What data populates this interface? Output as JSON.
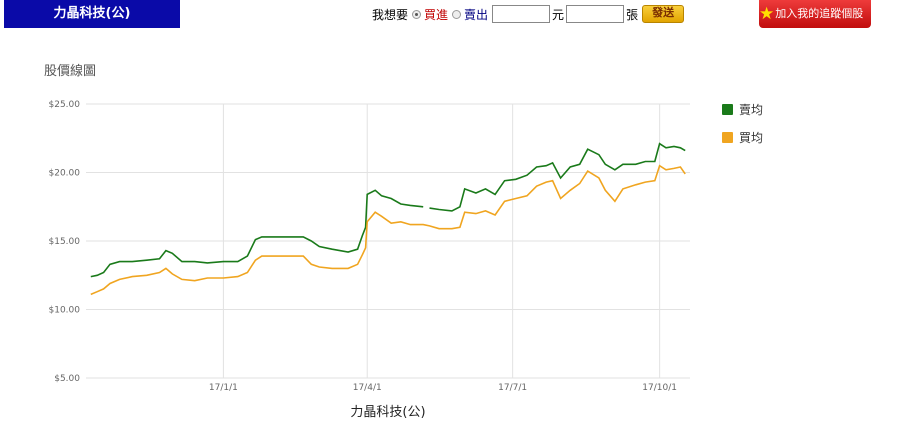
{
  "header": {
    "stock_title": "力晶科技(公)",
    "order_label": "我想要",
    "buy_label": "買進",
    "sell_label": "賣出",
    "price_value": "",
    "price_unit": "元",
    "qty_value": "",
    "qty_unit": "張",
    "send_label": "發送",
    "track_label": "加入我的追蹤個股"
  },
  "colors": {
    "sell_avg": "#1a7a1a",
    "buy_avg": "#f0a520",
    "header_bg": "#0a0aa8"
  },
  "chart_data": {
    "type": "line",
    "title": "股價線圖",
    "xlabel": "力晶科技(公)",
    "ylabel": "",
    "ylim": [
      5,
      25
    ],
    "yticks": [
      "$25.00",
      "$20.00",
      "$15.00",
      "$10.00",
      "$5.00"
    ],
    "ytick_values": [
      25,
      20,
      15,
      10,
      5
    ],
    "xlim": [
      "2016-10-07",
      "2017-10-20"
    ],
    "xticks": [
      "17/1/1",
      "17/4/1",
      "17/7/1",
      "17/10/1"
    ],
    "xtick_dates": [
      "2017-01-01",
      "2017-04-01",
      "2017-07-01",
      "2017-10-01"
    ],
    "grid": true,
    "legend_position": "right",
    "series": [
      {
        "name": "賣均",
        "color": "#1a7a1a",
        "points": [
          [
            "2016-10-10",
            12.4
          ],
          [
            "2016-10-14",
            12.5
          ],
          [
            "2016-10-18",
            12.7
          ],
          [
            "2016-10-22",
            13.3
          ],
          [
            "2016-10-28",
            13.5
          ],
          [
            "2016-11-05",
            13.5
          ],
          [
            "2016-11-14",
            13.6
          ],
          [
            "2016-11-22",
            13.7
          ],
          [
            "2016-11-26",
            14.3
          ],
          [
            "2016-11-30",
            14.1
          ],
          [
            "2016-12-06",
            13.5
          ],
          [
            "2016-12-14",
            13.5
          ],
          [
            "2016-12-22",
            13.4
          ],
          [
            "2017-01-01",
            13.5
          ],
          [
            "2017-01-10",
            13.5
          ],
          [
            "2017-01-16",
            13.9
          ],
          [
            "2017-01-21",
            15.1
          ],
          [
            "2017-01-25",
            15.3
          ],
          [
            "2017-02-10",
            15.3
          ],
          [
            "2017-02-20",
            15.3
          ],
          [
            "2017-02-25",
            15.0
          ],
          [
            "2017-03-02",
            14.6
          ],
          [
            "2017-03-10",
            14.4
          ],
          [
            "2017-03-20",
            14.2
          ],
          [
            "2017-03-26",
            14.4
          ],
          [
            "2017-03-29",
            15.4
          ],
          [
            "2017-03-31",
            16.0
          ],
          [
            "2017-04-01",
            18.4
          ],
          [
            "2017-04-06",
            18.7
          ],
          [
            "2017-04-10",
            18.3
          ],
          [
            "2017-04-16",
            18.1
          ],
          [
            "2017-04-22",
            17.7
          ],
          [
            "2017-04-28",
            17.6
          ],
          [
            "2017-05-06",
            17.5
          ],
          null,
          [
            "2017-05-10",
            17.4
          ],
          [
            "2017-05-16",
            17.3
          ],
          [
            "2017-05-24",
            17.2
          ],
          [
            "2017-05-29",
            17.5
          ],
          [
            "2017-06-01",
            18.8
          ],
          [
            "2017-06-08",
            18.5
          ],
          [
            "2017-06-14",
            18.8
          ],
          [
            "2017-06-20",
            18.4
          ],
          [
            "2017-06-26",
            19.4
          ],
          [
            "2017-07-03",
            19.5
          ],
          [
            "2017-07-10",
            19.8
          ],
          [
            "2017-07-16",
            20.4
          ],
          [
            "2017-07-22",
            20.5
          ],
          [
            "2017-07-26",
            20.7
          ],
          [
            "2017-07-31",
            19.6
          ],
          [
            "2017-08-06",
            20.4
          ],
          [
            "2017-08-12",
            20.6
          ],
          [
            "2017-08-17",
            21.7
          ],
          [
            "2017-08-24",
            21.3
          ],
          [
            "2017-08-28",
            20.6
          ],
          [
            "2017-09-03",
            20.2
          ],
          [
            "2017-09-08",
            20.6
          ],
          [
            "2017-09-16",
            20.6
          ],
          [
            "2017-09-22",
            20.8
          ],
          [
            "2017-09-28",
            20.8
          ],
          [
            "2017-10-01",
            22.1
          ],
          [
            "2017-10-05",
            21.8
          ],
          [
            "2017-10-10",
            21.9
          ],
          [
            "2017-10-14",
            21.8
          ],
          [
            "2017-10-17",
            21.6
          ]
        ]
      },
      {
        "name": "買均",
        "color": "#f0a520",
        "points": [
          [
            "2016-10-10",
            11.1
          ],
          [
            "2016-10-14",
            11.3
          ],
          [
            "2016-10-18",
            11.5
          ],
          [
            "2016-10-22",
            11.9
          ],
          [
            "2016-10-28",
            12.2
          ],
          [
            "2016-11-05",
            12.4
          ],
          [
            "2016-11-14",
            12.5
          ],
          [
            "2016-11-22",
            12.7
          ],
          [
            "2016-11-26",
            13.0
          ],
          [
            "2016-11-30",
            12.6
          ],
          [
            "2016-12-06",
            12.2
          ],
          [
            "2016-12-14",
            12.1
          ],
          [
            "2016-12-22",
            12.3
          ],
          [
            "2017-01-01",
            12.3
          ],
          [
            "2017-01-10",
            12.4
          ],
          [
            "2017-01-16",
            12.7
          ],
          [
            "2017-01-21",
            13.6
          ],
          [
            "2017-01-25",
            13.9
          ],
          [
            "2017-02-10",
            13.9
          ],
          [
            "2017-02-20",
            13.9
          ],
          [
            "2017-02-25",
            13.3
          ],
          [
            "2017-03-02",
            13.1
          ],
          [
            "2017-03-10",
            13.0
          ],
          [
            "2017-03-20",
            13.0
          ],
          [
            "2017-03-26",
            13.3
          ],
          [
            "2017-03-29",
            14.0
          ],
          [
            "2017-03-31",
            14.5
          ],
          [
            "2017-04-01",
            16.4
          ],
          [
            "2017-04-06",
            17.1
          ],
          [
            "2017-04-10",
            16.8
          ],
          [
            "2017-04-16",
            16.3
          ],
          [
            "2017-04-22",
            16.4
          ],
          [
            "2017-04-28",
            16.2
          ],
          [
            "2017-05-06",
            16.2
          ],
          [
            "2017-05-10",
            16.1
          ],
          [
            "2017-05-16",
            15.9
          ],
          [
            "2017-05-24",
            15.9
          ],
          [
            "2017-05-29",
            16.0
          ],
          [
            "2017-06-01",
            17.1
          ],
          [
            "2017-06-08",
            17.0
          ],
          [
            "2017-06-14",
            17.2
          ],
          [
            "2017-06-20",
            16.9
          ],
          [
            "2017-06-26",
            17.9
          ],
          [
            "2017-07-03",
            18.1
          ],
          [
            "2017-07-10",
            18.3
          ],
          [
            "2017-07-16",
            19.0
          ],
          [
            "2017-07-22",
            19.3
          ],
          [
            "2017-07-26",
            19.4
          ],
          [
            "2017-07-31",
            18.1
          ],
          [
            "2017-08-06",
            18.7
          ],
          [
            "2017-08-12",
            19.2
          ],
          [
            "2017-08-17",
            20.1
          ],
          [
            "2017-08-24",
            19.6
          ],
          [
            "2017-08-28",
            18.7
          ],
          [
            "2017-09-03",
            17.9
          ],
          [
            "2017-09-08",
            18.8
          ],
          [
            "2017-09-16",
            19.1
          ],
          [
            "2017-09-22",
            19.3
          ],
          [
            "2017-09-28",
            19.4
          ],
          [
            "2017-10-01",
            20.5
          ],
          [
            "2017-10-05",
            20.2
          ],
          [
            "2017-10-10",
            20.3
          ],
          [
            "2017-10-14",
            20.4
          ],
          [
            "2017-10-17",
            19.9
          ]
        ]
      }
    ]
  }
}
